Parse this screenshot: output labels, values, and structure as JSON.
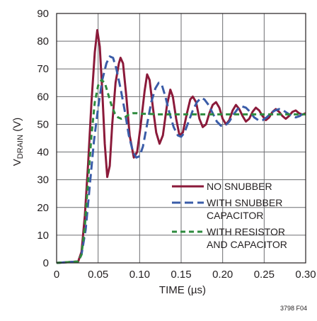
{
  "chart_data": {
    "type": "line",
    "title": "",
    "xlabel": "TIME (µs)",
    "ylabel_main": "V",
    "ylabel_sub": "DRAIN",
    "ylabel_unit": " (V)",
    "xlim": [
      0,
      0.3
    ],
    "ylim": [
      0,
      90
    ],
    "xticks": [
      "0",
      "0.05",
      "0.10",
      "0.15",
      "0.20",
      "0.25",
      "0.30"
    ],
    "yticks": [
      "0",
      "10",
      "20",
      "30",
      "40",
      "50",
      "60",
      "70",
      "80",
      "90"
    ],
    "grid": true,
    "legend_position": "lower-right",
    "figure_id": "3798 F04",
    "series": [
      {
        "name": "NO SNUBBER",
        "color": "#8b1a3a",
        "style": "solid",
        "points": [
          [
            0,
            0
          ],
          [
            0.026,
            0.5
          ],
          [
            0.03,
            4
          ],
          [
            0.034,
            17
          ],
          [
            0.038,
            36
          ],
          [
            0.042,
            58
          ],
          [
            0.046,
            76
          ],
          [
            0.049,
            84
          ],
          [
            0.052,
            78
          ],
          [
            0.055,
            62
          ],
          [
            0.058,
            43
          ],
          [
            0.061,
            31
          ],
          [
            0.064,
            35
          ],
          [
            0.067,
            50
          ],
          [
            0.071,
            65
          ],
          [
            0.075,
            72
          ],
          [
            0.077,
            74
          ],
          [
            0.08,
            72
          ],
          [
            0.084,
            60
          ],
          [
            0.088,
            46
          ],
          [
            0.093,
            38
          ],
          [
            0.097,
            40
          ],
          [
            0.101,
            49
          ],
          [
            0.106,
            62
          ],
          [
            0.109,
            68
          ],
          [
            0.112,
            66
          ],
          [
            0.116,
            56
          ],
          [
            0.12,
            47
          ],
          [
            0.124,
            43
          ],
          [
            0.128,
            46
          ],
          [
            0.133,
            57
          ],
          [
            0.137,
            62.5
          ],
          [
            0.14,
            60
          ],
          [
            0.144,
            52
          ],
          [
            0.148,
            46
          ],
          [
            0.152,
            47
          ],
          [
            0.157,
            54
          ],
          [
            0.161,
            59
          ],
          [
            0.164,
            60
          ],
          [
            0.168,
            58
          ],
          [
            0.172,
            52
          ],
          [
            0.176,
            49
          ],
          [
            0.18,
            50
          ],
          [
            0.184,
            54
          ],
          [
            0.188,
            57
          ],
          [
            0.192,
            58
          ],
          [
            0.196,
            56
          ],
          [
            0.2,
            52
          ],
          [
            0.204,
            50
          ],
          [
            0.208,
            51.5
          ],
          [
            0.212,
            55
          ],
          [
            0.216,
            57
          ],
          [
            0.22,
            55.5
          ],
          [
            0.224,
            53
          ],
          [
            0.228,
            51
          ],
          [
            0.232,
            52
          ],
          [
            0.236,
            54.5
          ],
          [
            0.24,
            56
          ],
          [
            0.244,
            55
          ],
          [
            0.248,
            53
          ],
          [
            0.252,
            51.5
          ],
          [
            0.256,
            52.5
          ],
          [
            0.26,
            54.5
          ],
          [
            0.264,
            55.5
          ],
          [
            0.268,
            54.5
          ],
          [
            0.272,
            53
          ],
          [
            0.276,
            52
          ],
          [
            0.28,
            53
          ],
          [
            0.284,
            54.5
          ],
          [
            0.288,
            55
          ],
          [
            0.292,
            54
          ],
          [
            0.296,
            53.5
          ],
          [
            0.3,
            54
          ]
        ]
      },
      {
        "name": "WITH SNUBBER CAPACITOR",
        "color": "#3a5ca8",
        "style": "dashed",
        "points": [
          [
            0,
            0
          ],
          [
            0.026,
            0.5
          ],
          [
            0.03,
            3
          ],
          [
            0.035,
            12
          ],
          [
            0.04,
            28
          ],
          [
            0.045,
            44
          ],
          [
            0.05,
            56
          ],
          [
            0.055,
            66
          ],
          [
            0.06,
            72
          ],
          [
            0.064,
            74.5
          ],
          [
            0.068,
            74
          ],
          [
            0.072,
            70
          ],
          [
            0.077,
            63
          ],
          [
            0.082,
            55
          ],
          [
            0.087,
            46
          ],
          [
            0.092,
            40
          ],
          [
            0.096,
            38
          ],
          [
            0.1,
            38.5
          ],
          [
            0.104,
            42
          ],
          [
            0.109,
            50
          ],
          [
            0.114,
            58
          ],
          [
            0.119,
            63
          ],
          [
            0.123,
            65
          ],
          [
            0.127,
            64
          ],
          [
            0.131,
            60
          ],
          [
            0.136,
            54
          ],
          [
            0.141,
            49
          ],
          [
            0.146,
            46
          ],
          [
            0.15,
            45.5
          ],
          [
            0.154,
            47
          ],
          [
            0.159,
            51
          ],
          [
            0.164,
            55
          ],
          [
            0.169,
            58
          ],
          [
            0.174,
            59.5
          ],
          [
            0.178,
            59
          ],
          [
            0.183,
            57
          ],
          [
            0.188,
            54
          ],
          [
            0.193,
            51
          ],
          [
            0.198,
            49.5
          ],
          [
            0.203,
            49.5
          ],
          [
            0.208,
            51
          ],
          [
            0.213,
            53.5
          ],
          [
            0.218,
            55.5
          ],
          [
            0.223,
            56.5
          ],
          [
            0.228,
            56
          ],
          [
            0.233,
            54.5
          ],
          [
            0.238,
            52.5
          ],
          [
            0.243,
            51.5
          ],
          [
            0.248,
            51.5
          ],
          [
            0.253,
            52.5
          ],
          [
            0.258,
            54
          ],
          [
            0.263,
            55
          ],
          [
            0.268,
            55.5
          ],
          [
            0.273,
            55
          ],
          [
            0.278,
            54
          ],
          [
            0.283,
            53
          ],
          [
            0.288,
            52.5
          ],
          [
            0.293,
            53
          ],
          [
            0.297,
            54
          ],
          [
            0.3,
            54.5
          ]
        ]
      },
      {
        "name": "WITH RESISTOR AND CAPACITOR",
        "color": "#2e8b3e",
        "style": "dashed",
        "points": [
          [
            0,
            0
          ],
          [
            0.026,
            0.5
          ],
          [
            0.03,
            3
          ],
          [
            0.034,
            13
          ],
          [
            0.038,
            30
          ],
          [
            0.042,
            46
          ],
          [
            0.046,
            58
          ],
          [
            0.05,
            64
          ],
          [
            0.054,
            66
          ],
          [
            0.058,
            65
          ],
          [
            0.062,
            61
          ],
          [
            0.066,
            57
          ],
          [
            0.07,
            54
          ],
          [
            0.074,
            52.5
          ],
          [
            0.078,
            52
          ],
          [
            0.082,
            52.5
          ],
          [
            0.087,
            53.5
          ],
          [
            0.092,
            54
          ],
          [
            0.097,
            54
          ],
          [
            0.102,
            53.8
          ],
          [
            0.11,
            53.8
          ],
          [
            0.12,
            53.6
          ],
          [
            0.14,
            53.6
          ],
          [
            0.16,
            53.6
          ],
          [
            0.2,
            53.6
          ],
          [
            0.25,
            53.6
          ],
          [
            0.3,
            53.6
          ]
        ]
      }
    ],
    "legend": {
      "line1": [
        "NO SNUBBER"
      ],
      "line2": [
        "WITH SNUBBER",
        "CAPACITOR"
      ],
      "line3": [
        "WITH RESISTOR",
        "AND CAPACITOR"
      ]
    }
  }
}
